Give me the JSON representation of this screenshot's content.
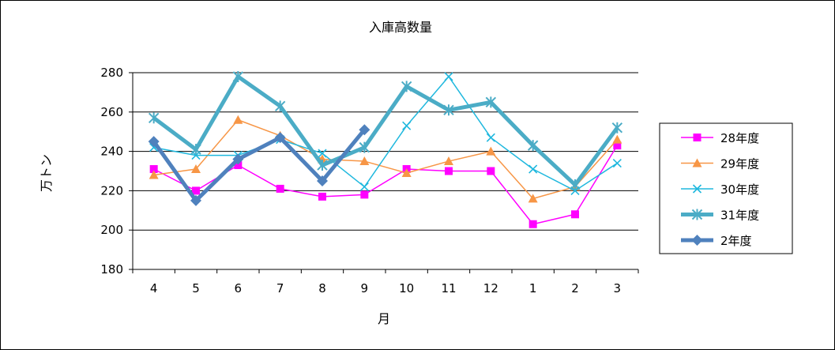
{
  "chart_data": {
    "type": "line",
    "title": "入庫高数量",
    "xlabel": "月",
    "ylabel": "万トン",
    "categories": [
      "4",
      "5",
      "6",
      "7",
      "8",
      "9",
      "10",
      "11",
      "12",
      "1",
      "2",
      "3"
    ],
    "ylim": [
      180,
      280
    ],
    "yticks": [
      180,
      200,
      220,
      240,
      260,
      280
    ],
    "grid": true,
    "legend_position": "right",
    "series": [
      {
        "name": "28年度",
        "color": "#ff00ff",
        "marker": "square",
        "line_width": "thin",
        "values": [
          231,
          220,
          233,
          221,
          217,
          218,
          231,
          230,
          230,
          203,
          208,
          243
        ]
      },
      {
        "name": "29年度",
        "color": "#f79646",
        "marker": "triangle",
        "line_width": "thin",
        "values": [
          228,
          231,
          256,
          248,
          236,
          235,
          229,
          235,
          240,
          216,
          222,
          246
        ]
      },
      {
        "name": "30年度",
        "color": "#1fb8de",
        "marker": "x",
        "line_width": "thin",
        "values": [
          242,
          238,
          238,
          246,
          239,
          222,
          253,
          278,
          247,
          231,
          220,
          234
        ]
      },
      {
        "name": "31年度",
        "color": "#4bacc6",
        "marker": "star",
        "line_width": "thick",
        "values": [
          257,
          241,
          278,
          263,
          233,
          242,
          273,
          261,
          265,
          243,
          223,
          252
        ]
      },
      {
        "name": "2年度",
        "color": "#4f81bd",
        "marker": "diamond",
        "line_width": "thick",
        "values": [
          245,
          215,
          236,
          247,
          225,
          251,
          null,
          null,
          null,
          null,
          null,
          null
        ]
      }
    ]
  }
}
